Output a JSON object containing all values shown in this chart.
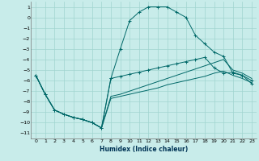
{
  "title": "",
  "xlabel": "Humidex (Indice chaleur)",
  "bg_color": "#c8ecea",
  "grid_color": "#a0d4d0",
  "line_color": "#006868",
  "xlim": [
    -0.5,
    23.5
  ],
  "ylim": [
    -11.5,
    1.5
  ],
  "xticks": [
    0,
    1,
    2,
    3,
    4,
    5,
    6,
    7,
    8,
    9,
    10,
    11,
    12,
    13,
    14,
    15,
    16,
    17,
    18,
    19,
    20,
    21,
    22,
    23
  ],
  "yticks": [
    1,
    0,
    -1,
    -2,
    -3,
    -4,
    -5,
    -6,
    -7,
    -8,
    -9,
    -10,
    -11
  ],
  "series": [
    {
      "x": [
        0,
        1,
        2,
        3,
        4,
        5,
        6,
        7,
        8,
        9,
        10,
        11,
        12,
        13,
        14,
        15,
        16,
        17,
        18,
        19,
        20,
        21,
        22,
        23
      ],
      "y": [
        -5.5,
        -7.3,
        -8.8,
        -9.2,
        -9.5,
        -9.7,
        -10.0,
        -10.5,
        -5.8,
        -3.0,
        -0.3,
        0.5,
        1.0,
        1.0,
        1.0,
        0.5,
        0.0,
        -1.7,
        -2.5,
        -3.3,
        -3.7,
        -5.3,
        -5.5,
        -6.0
      ],
      "marker": "+"
    },
    {
      "x": [
        0,
        1,
        2,
        3,
        4,
        5,
        6,
        7,
        8,
        9,
        10,
        11,
        12,
        13,
        14,
        15,
        16,
        17,
        18,
        19,
        20,
        21,
        22,
        23
      ],
      "y": [
        -5.5,
        -7.3,
        -8.8,
        -9.2,
        -9.5,
        -9.7,
        -10.0,
        -10.5,
        -7.7,
        -7.5,
        -7.3,
        -7.1,
        -6.9,
        -6.7,
        -6.4,
        -6.2,
        -6.0,
        -5.8,
        -5.6,
        -5.3,
        -5.1,
        -5.5,
        -5.8,
        -6.2
      ],
      "marker": null
    },
    {
      "x": [
        0,
        1,
        2,
        3,
        4,
        5,
        6,
        7,
        8,
        9,
        10,
        11,
        12,
        13,
        14,
        15,
        16,
        17,
        18,
        19,
        20,
        21,
        22,
        23
      ],
      "y": [
        -5.5,
        -7.3,
        -8.8,
        -9.2,
        -9.5,
        -9.7,
        -10.0,
        -10.5,
        -7.5,
        -7.3,
        -7.0,
        -6.7,
        -6.4,
        -6.1,
        -5.8,
        -5.5,
        -5.2,
        -4.9,
        -4.6,
        -4.3,
        -4.0,
        -5.0,
        -5.3,
        -5.8
      ],
      "marker": null
    },
    {
      "x": [
        0,
        1,
        2,
        3,
        4,
        5,
        6,
        7,
        8,
        9,
        10,
        11,
        12,
        13,
        14,
        15,
        16,
        17,
        18,
        19,
        20,
        21,
        22,
        23
      ],
      "y": [
        -5.5,
        -7.3,
        -8.8,
        -9.2,
        -9.5,
        -9.7,
        -10.0,
        -10.5,
        -5.8,
        -5.6,
        -5.4,
        -5.2,
        -5.0,
        -4.8,
        -4.6,
        -4.4,
        -4.2,
        -4.0,
        -3.8,
        -4.8,
        -5.3,
        -5.2,
        -5.5,
        -6.3
      ],
      "marker": "+"
    }
  ]
}
